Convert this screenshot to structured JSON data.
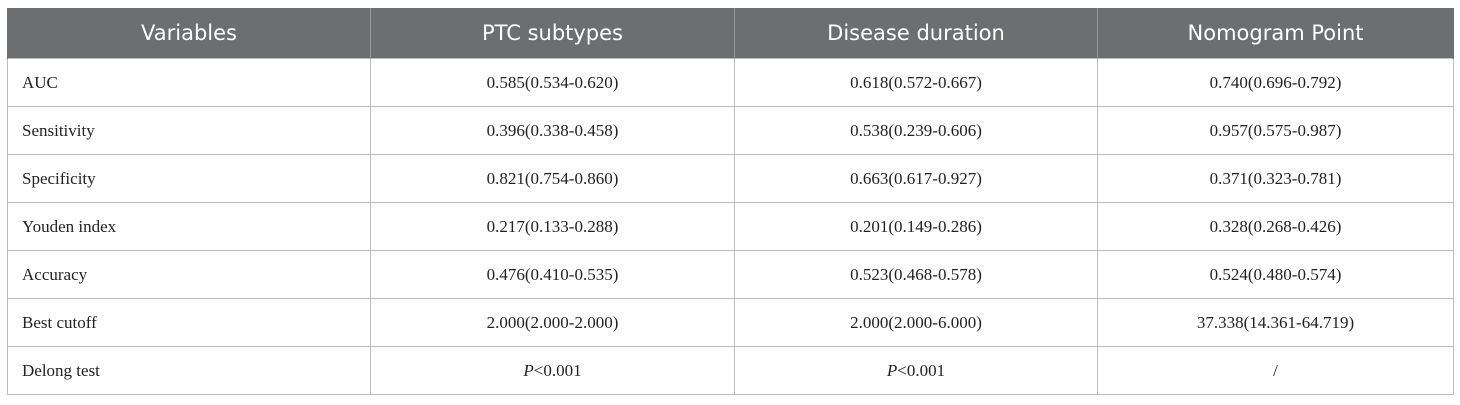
{
  "table": {
    "headers": [
      "Variables",
      "PTC subtypes",
      "Disease duration",
      "Nomogram Point"
    ],
    "rows": [
      {
        "label": "AUC",
        "ptc": "0.585(0.534-0.620)",
        "duration": "0.618(0.572-0.667)",
        "nomogram": "0.740(0.696-0.792)"
      },
      {
        "label": "Sensitivity",
        "ptc": "0.396(0.338-0.458)",
        "duration": "0.538(0.239-0.606)",
        "nomogram": "0.957(0.575-0.987)"
      },
      {
        "label": "Specificity",
        "ptc": "0.821(0.754-0.860)",
        "duration": "0.663(0.617-0.927)",
        "nomogram": "0.371(0.323-0.781)"
      },
      {
        "label": "Youden index",
        "ptc": "0.217(0.133-0.288)",
        "duration": "0.201(0.149-0.286)",
        "nomogram": "0.328(0.268-0.426)"
      },
      {
        "label": "Accuracy",
        "ptc": "0.476(0.410-0.535)",
        "duration": "0.523(0.468-0.578)",
        "nomogram": "0.524(0.480-0.574)"
      },
      {
        "label": "Best cutoff",
        "ptc": "2.000(2.000-2.000)",
        "duration": "2.000(2.000-6.000)",
        "nomogram": "37.338(14.361-64.719)"
      }
    ],
    "delong": {
      "label": "Delong test",
      "p_symbol": "P",
      "ptc_rest": "<0.001",
      "duration_rest": "<0.001",
      "nomogram": "/"
    }
  }
}
